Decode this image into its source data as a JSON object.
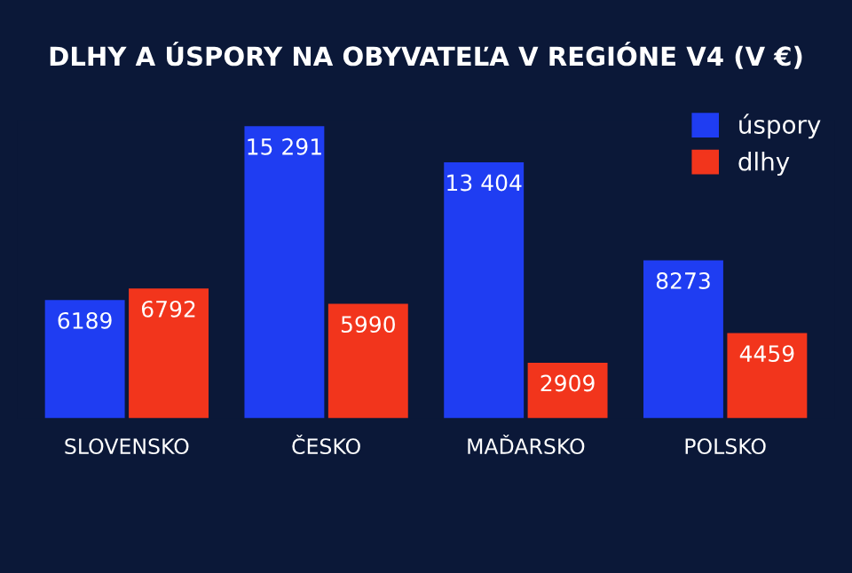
{
  "chart_data": {
    "type": "bar",
    "title": "DLHY A ÚSPORY NA OBYVATEĽA V REGIÓNE V4 (V €)",
    "categories": [
      "SLOVENSKO",
      "ČESKO",
      "MAĎARSKO",
      "POLSKO"
    ],
    "series": [
      {
        "name": "úspory",
        "color": "#1f3df2",
        "values": [
          6189,
          15291,
          13404,
          8273
        ],
        "value_labels": [
          "6189",
          "15 291",
          "13 404",
          "8273"
        ]
      },
      {
        "name": "dlhy",
        "color": "#f2351c",
        "values": [
          6792,
          5990,
          2909,
          4459
        ],
        "value_labels": [
          "6792",
          "5990",
          "2909",
          "4459"
        ]
      }
    ],
    "legend": "top right",
    "grid": false
  }
}
